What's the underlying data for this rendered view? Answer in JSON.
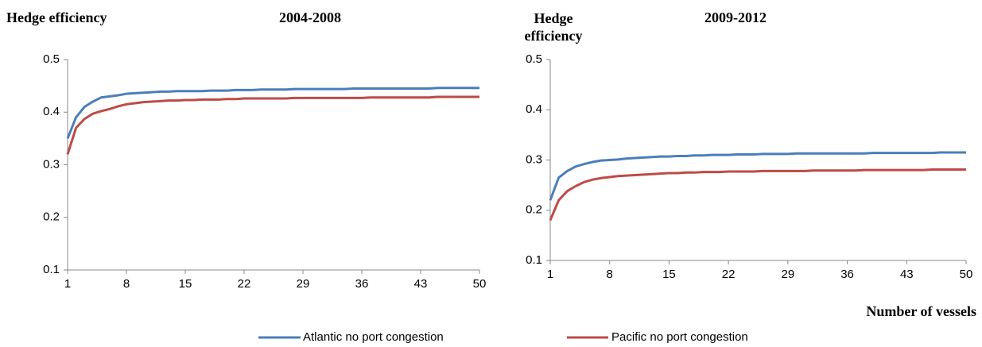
{
  "chart_data": [
    {
      "type": "line",
      "title": "2004-2008",
      "y_label": "Hedge efficiency",
      "x": [
        1,
        2,
        3,
        4,
        5,
        6,
        7,
        8,
        9,
        10,
        11,
        12,
        13,
        14,
        15,
        16,
        17,
        18,
        19,
        20,
        21,
        22,
        23,
        24,
        25,
        26,
        27,
        28,
        29,
        30,
        31,
        32,
        33,
        34,
        35,
        36,
        37,
        38,
        39,
        40,
        41,
        42,
        43,
        44,
        45,
        46,
        47,
        48,
        49,
        50
      ],
      "series": [
        {
          "name": "Atlantic no port congestion",
          "color": "#4a7ebb",
          "values": [
            0.35,
            0.39,
            0.41,
            0.42,
            0.428,
            0.43,
            0.432,
            0.435,
            0.436,
            0.437,
            0.438,
            0.439,
            0.439,
            0.44,
            0.44,
            0.44,
            0.44,
            0.441,
            0.441,
            0.441,
            0.442,
            0.442,
            0.442,
            0.443,
            0.443,
            0.443,
            0.443,
            0.444,
            0.444,
            0.444,
            0.444,
            0.444,
            0.444,
            0.444,
            0.445,
            0.445,
            0.445,
            0.445,
            0.445,
            0.445,
            0.445,
            0.445,
            0.445,
            0.445,
            0.446,
            0.446,
            0.446,
            0.446,
            0.446,
            0.446
          ]
        },
        {
          "name": "Pacific no port congestion",
          "color": "#be4b48",
          "values": [
            0.32,
            0.37,
            0.387,
            0.397,
            0.402,
            0.406,
            0.411,
            0.415,
            0.417,
            0.419,
            0.42,
            0.421,
            0.422,
            0.422,
            0.423,
            0.423,
            0.424,
            0.424,
            0.424,
            0.425,
            0.425,
            0.426,
            0.426,
            0.426,
            0.426,
            0.426,
            0.426,
            0.427,
            0.427,
            0.427,
            0.427,
            0.427,
            0.427,
            0.427,
            0.427,
            0.427,
            0.428,
            0.428,
            0.428,
            0.428,
            0.428,
            0.428,
            0.428,
            0.428,
            0.429,
            0.429,
            0.429,
            0.429,
            0.429,
            0.429
          ]
        }
      ],
      "xlim": [
        1,
        50
      ],
      "xticks": [
        1,
        8,
        15,
        22,
        29,
        36,
        43,
        50
      ],
      "ylim": [
        0.1,
        0.5
      ],
      "yticks": [
        0.1,
        0.2,
        0.3,
        0.4,
        0.5
      ],
      "grid": false
    },
    {
      "type": "line",
      "title": "2009-2012",
      "y_label": "Hedge efficiency",
      "x_label": "Number of vessels",
      "x": [
        1,
        2,
        3,
        4,
        5,
        6,
        7,
        8,
        9,
        10,
        11,
        12,
        13,
        14,
        15,
        16,
        17,
        18,
        19,
        20,
        21,
        22,
        23,
        24,
        25,
        26,
        27,
        28,
        29,
        30,
        31,
        32,
        33,
        34,
        35,
        36,
        37,
        38,
        39,
        40,
        41,
        42,
        43,
        44,
        45,
        46,
        47,
        48,
        49,
        50
      ],
      "series": [
        {
          "color": "#4a7ebb",
          "values": [
            0.22,
            0.265,
            0.278,
            0.287,
            0.292,
            0.296,
            0.299,
            0.3,
            0.301,
            0.303,
            0.304,
            0.305,
            0.306,
            0.307,
            0.307,
            0.308,
            0.308,
            0.309,
            0.309,
            0.31,
            0.31,
            0.31,
            0.311,
            0.311,
            0.311,
            0.312,
            0.312,
            0.312,
            0.312,
            0.313,
            0.313,
            0.313,
            0.313,
            0.313,
            0.313,
            0.313,
            0.313,
            0.313,
            0.314,
            0.314,
            0.314,
            0.314,
            0.314,
            0.314,
            0.314,
            0.314,
            0.315,
            0.315,
            0.315,
            0.315
          ]
        },
        {
          "color": "#be4b48",
          "values": [
            0.18,
            0.22,
            0.238,
            0.248,
            0.256,
            0.261,
            0.264,
            0.266,
            0.268,
            0.269,
            0.27,
            0.271,
            0.272,
            0.273,
            0.274,
            0.274,
            0.275,
            0.275,
            0.276,
            0.276,
            0.276,
            0.277,
            0.277,
            0.277,
            0.277,
            0.278,
            0.278,
            0.278,
            0.278,
            0.278,
            0.278,
            0.279,
            0.279,
            0.279,
            0.279,
            0.279,
            0.279,
            0.28,
            0.28,
            0.28,
            0.28,
            0.28,
            0.28,
            0.28,
            0.28,
            0.281,
            0.281,
            0.281,
            0.281,
            0.281
          ]
        }
      ],
      "xlim": [
        1,
        50
      ],
      "xticks": [
        1,
        8,
        15,
        22,
        29,
        36,
        43,
        50
      ],
      "ylim": [
        0.1,
        0.5
      ],
      "yticks": [
        0.1,
        0.2,
        0.3,
        0.4,
        0.5
      ],
      "grid": false
    }
  ]
}
